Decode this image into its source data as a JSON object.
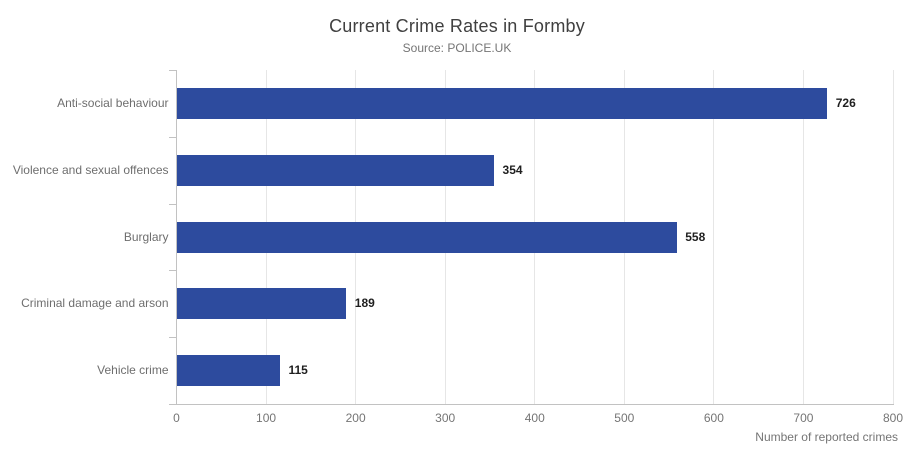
{
  "chart_data": {
    "type": "bar",
    "orientation": "horizontal",
    "title": "Current Crime Rates in Formby",
    "subtitle": "Source: POLICE.UK",
    "categories": [
      "Anti-social behaviour",
      "Violence and sexual offences",
      "Burglary",
      "Criminal damage and arson",
      "Vehicle crime"
    ],
    "values": [
      726,
      354,
      558,
      189,
      115
    ],
    "data_labels": [
      "726",
      "354",
      "558",
      "189",
      "115"
    ],
    "xlabel": "Number of reported crimes",
    "ylabel": "",
    "xlim": [
      0,
      800
    ],
    "xticks": [
      "0",
      "100",
      "200",
      "300",
      "400",
      "500",
      "600",
      "700",
      "800"
    ],
    "grid": "vertical",
    "legend": "none",
    "colors": {
      "bar": "#2d4b9e",
      "grid_line": "#e6e6e6",
      "axis_line": "#c2c2c2",
      "title_text": "#404040",
      "subtitle_text": "#757575",
      "category_text": "#6e6e6e",
      "tick_text": "#757575",
      "value_text": "#1f1f1f"
    }
  }
}
